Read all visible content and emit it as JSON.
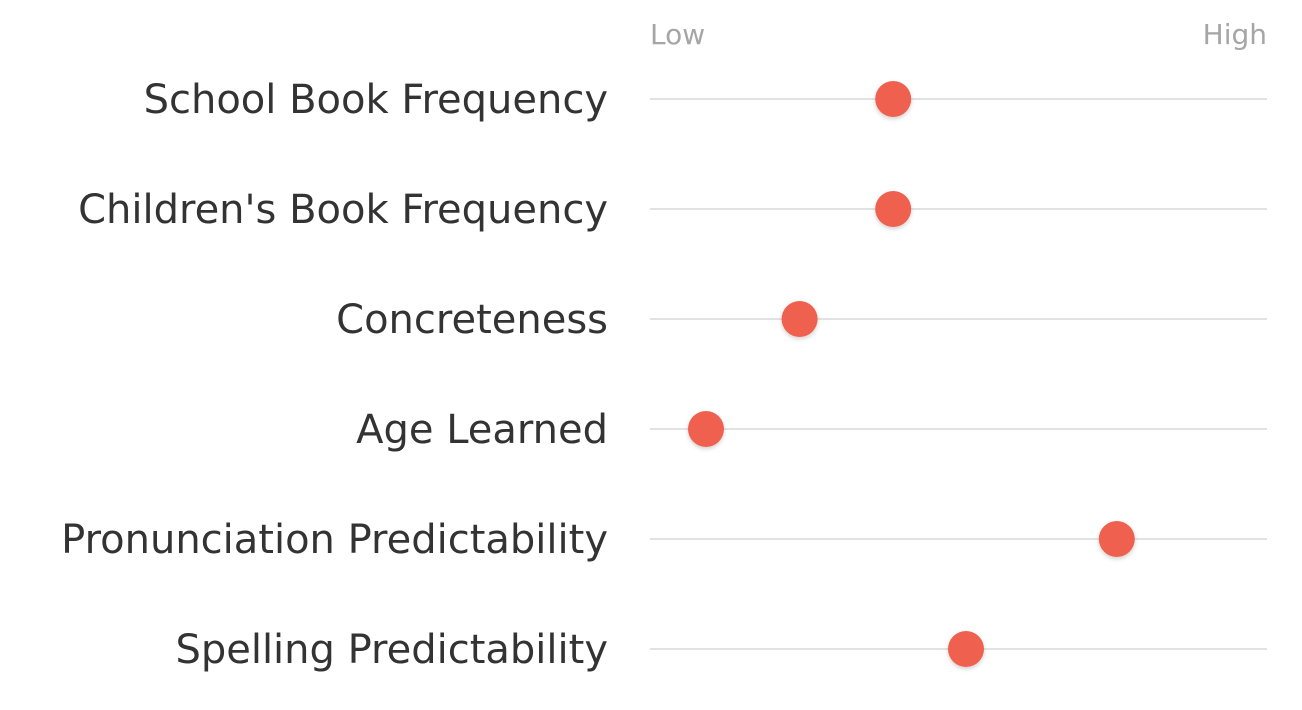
{
  "chart_data": {
    "type": "scatter",
    "title": "",
    "xlabel": "",
    "ylabel": "",
    "xlim": [
      0,
      100
    ],
    "axis_labels": {
      "low": "Low",
      "high": "High"
    },
    "categories": [
      "School Book Frequency",
      "Children's Book Frequency",
      "Concreteness",
      "Age Learned",
      "Pronunciation Predictability",
      "Spelling Predictability"
    ],
    "values": [
      41,
      41,
      23,
      5,
      84,
      55
    ],
    "dot_color": "#f0604f",
    "line_color": "#d9d9d9",
    "grid": false,
    "legend": "none"
  }
}
